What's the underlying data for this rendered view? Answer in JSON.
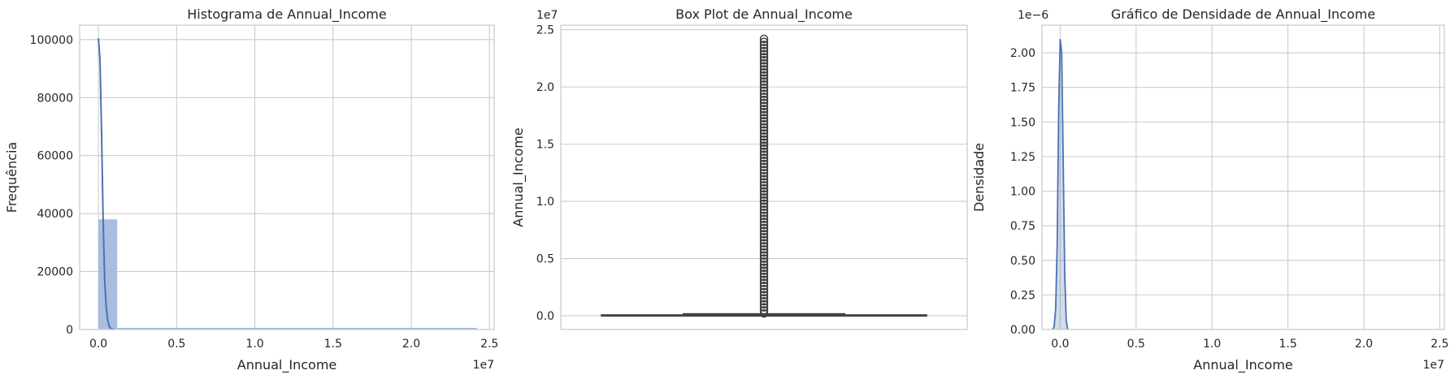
{
  "chart_data": [
    {
      "type": "bar",
      "subtype": "histogram-with-kde",
      "title": "Histograma de Annual_Income",
      "xlabel": "Annual_Income",
      "ylabel": "Frequência",
      "x_offset_label": "1e7",
      "xlim": [
        -1200000,
        25300000
      ],
      "ylim": [
        0,
        105000
      ],
      "x_ticks": [
        0,
        5000000,
        10000000,
        15000000,
        20000000,
        25000000
      ],
      "x_tick_labels": [
        "0.0",
        "0.5",
        "1.0",
        "1.5",
        "2.0",
        "2.5"
      ],
      "y_ticks": [
        0,
        20000,
        40000,
        60000,
        80000,
        100000
      ],
      "y_tick_labels": [
        "0",
        "20000",
        "40000",
        "60000",
        "80000",
        "100000"
      ],
      "bin_width": 1200000,
      "bins_x0": [
        0
      ],
      "bins_count": [
        38000
      ],
      "kde": {
        "x": [
          0,
          100000,
          200000,
          300000,
          400000,
          500000,
          600000,
          700000,
          800000,
          1000000
        ],
        "y": [
          100500,
          93000,
          68000,
          38000,
          17000,
          7500,
          3000,
          1000,
          300,
          0
        ]
      },
      "bar_color": "#a1b5dc",
      "line_color": "#4c72b0",
      "grid": true
    },
    {
      "type": "boxplot",
      "title": "Box Plot de Annual_Income",
      "xlabel": "",
      "ylabel": "Annual_Income",
      "y_offset_label": "1e7",
      "ylim": [
        -1200000,
        25400000
      ],
      "y_ticks": [
        0,
        5000000,
        10000000,
        15000000,
        20000000,
        25000000
      ],
      "y_tick_labels": [
        "0.0",
        "0.5",
        "1.0",
        "1.5",
        "2.0",
        "2.5"
      ],
      "box": {
        "q1": 20000,
        "median": 40000,
        "q3": 80000,
        "whisker_low": 0,
        "whisker_high": 170000
      },
      "outliers_range": [
        200000,
        24200000
      ],
      "grid": true
    },
    {
      "type": "area",
      "subtype": "density",
      "title": "Gráfico de Densidade de Annual_Income",
      "xlabel": "Annual_Income",
      "ylabel": "Densidade",
      "x_offset_label": "1e7",
      "y_offset_label": "1e−6",
      "xlim": [
        -1200000,
        25300000
      ],
      "ylim": [
        0,
        2.2e-06
      ],
      "x_ticks": [
        0,
        5000000,
        10000000,
        15000000,
        20000000,
        25000000
      ],
      "x_tick_labels": [
        "0.0",
        "0.5",
        "1.0",
        "1.5",
        "2.0",
        "2.5"
      ],
      "y_ticks": [
        0,
        2.5e-07,
        5e-07,
        7.5e-07,
        1e-06,
        1.25e-06,
        1.5e-06,
        1.75e-06,
        2e-06
      ],
      "y_tick_labels": [
        "0.00",
        "0.25",
        "0.50",
        "0.75",
        "1.00",
        "1.25",
        "1.50",
        "1.75",
        "2.00"
      ],
      "density": {
        "x": [
          -500000,
          -400000,
          -300000,
          -200000,
          -100000,
          0,
          100000,
          200000,
          300000,
          400000,
          500000
        ],
        "y": [
          0,
          2e-08,
          1.5e-07,
          6e-07,
          1.6e-06,
          2.1e-06,
          2e-06,
          1.2e-06,
          4e-07,
          6e-08,
          0
        ]
      },
      "fill_color": "#4c72b0",
      "grid": true
    }
  ]
}
